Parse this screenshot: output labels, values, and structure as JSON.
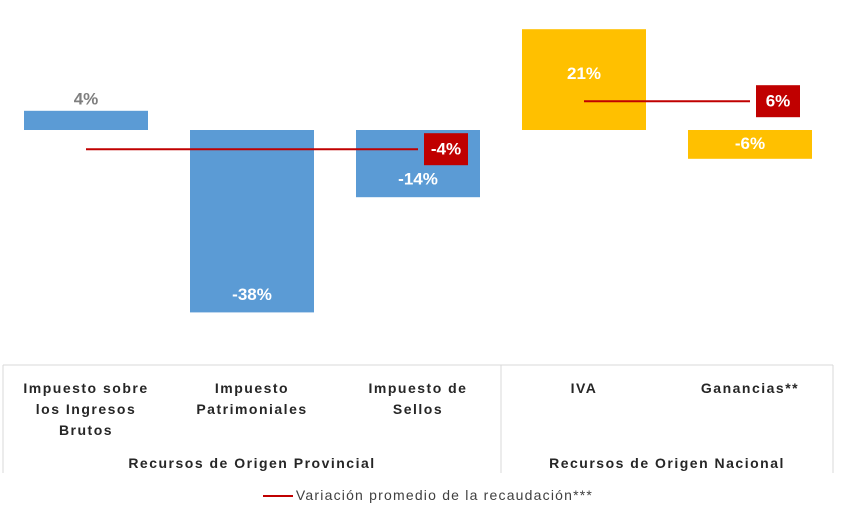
{
  "chart_data": {
    "type": "bar",
    "ylim": [
      -40,
      25
    ],
    "average_name": "Variación promedio de la recaudación***",
    "average_color": "#c00000",
    "groups": [
      {
        "name": "Recursos de Origen Provincial",
        "color": "#5b9bd5",
        "categories": [
          "Impuesto sobre los Ingresos Brutos",
          "Impuesto Patrimoniales",
          "Impuesto de Sellos"
        ],
        "values": [
          4,
          -38,
          -14
        ],
        "value_labels": [
          "4%",
          "-38%",
          "-14%"
        ],
        "average": -4,
        "average_label": "-4%"
      },
      {
        "name": "Recursos de Origen Nacional",
        "color": "#ffc000",
        "categories": [
          "IVA",
          "Ganancias**"
        ],
        "values": [
          21,
          -6
        ],
        "value_labels": [
          "21%",
          "-6%"
        ],
        "average": 6,
        "average_label": "6%"
      }
    ]
  }
}
